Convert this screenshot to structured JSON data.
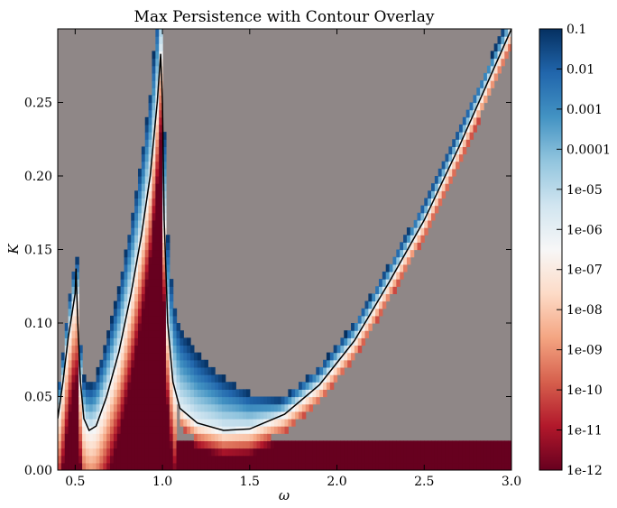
{
  "chart_data": {
    "type": "heatmap",
    "title": "Max Persistence with Contour Overlay",
    "xlabel": "ω",
    "ylabel": "K",
    "xlim": [
      0.4,
      3.0
    ],
    "ylim": [
      0.0,
      0.3
    ],
    "x_ticks": [
      "0.5",
      "1.0",
      "1.5",
      "2.0",
      "2.5",
      "3.0"
    ],
    "x_tick_values": [
      0.5,
      1.0,
      1.5,
      2.0,
      2.5,
      3.0
    ],
    "y_ticks": [
      "0.00",
      "0.05",
      "0.10",
      "0.15",
      "0.20",
      "0.25"
    ],
    "y_tick_values": [
      0.0,
      0.05,
      0.1,
      0.15,
      0.2,
      0.25
    ],
    "colorbar": {
      "scale": "log",
      "colormap": "RdBu",
      "labels": [
        "0.1",
        "0.01",
        "0.001",
        "0.0001",
        "1e-05",
        "1e-06",
        "1e-07",
        "1e-08",
        "1e-09",
        "1e-10",
        "1e-11",
        "1e-12"
      ],
      "range": [
        1e-12,
        0.1
      ]
    },
    "background_color": "#8f8787",
    "contour_color": "#000000",
    "contour": [
      [
        0.4,
        0.035
      ],
      [
        0.43,
        0.06
      ],
      [
        0.46,
        0.09
      ],
      [
        0.48,
        0.105
      ],
      [
        0.5,
        0.12
      ],
      [
        0.505,
        0.137
      ],
      [
        0.515,
        0.1
      ],
      [
        0.53,
        0.06
      ],
      [
        0.55,
        0.035
      ],
      [
        0.58,
        0.027
      ],
      [
        0.62,
        0.03
      ],
      [
        0.68,
        0.05
      ],
      [
        0.75,
        0.08
      ],
      [
        0.82,
        0.12
      ],
      [
        0.88,
        0.16
      ],
      [
        0.93,
        0.2
      ],
      [
        0.97,
        0.25
      ],
      [
        0.99,
        0.283
      ],
      [
        1.0,
        0.25
      ],
      [
        1.01,
        0.17
      ],
      [
        1.03,
        0.1
      ],
      [
        1.06,
        0.06
      ],
      [
        1.1,
        0.042
      ],
      [
        1.2,
        0.032
      ],
      [
        1.35,
        0.027
      ],
      [
        1.5,
        0.028
      ],
      [
        1.7,
        0.038
      ],
      [
        1.9,
        0.058
      ],
      [
        2.1,
        0.088
      ],
      [
        2.3,
        0.128
      ],
      [
        2.5,
        0.17
      ],
      [
        2.7,
        0.22
      ],
      [
        2.85,
        0.26
      ],
      [
        3.0,
        0.3
      ]
    ]
  }
}
